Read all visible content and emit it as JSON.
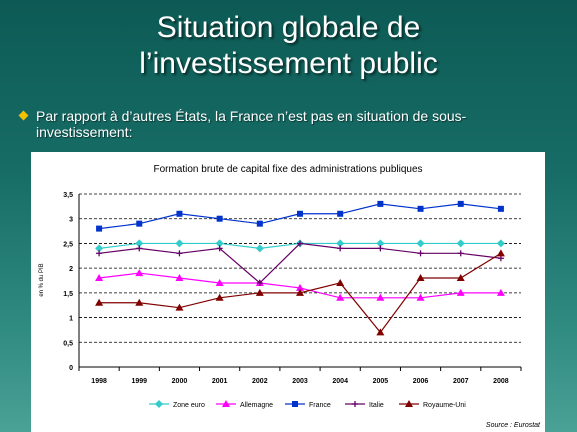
{
  "slide": {
    "title_line1": "Situation globale de",
    "title_line2": "l’investissement public",
    "bullet": "Par rapport à d’autres États, la France n’est pas en situation de sous-investissement:"
  },
  "chart_data": {
    "type": "line",
    "title": "Formation brute de capital fixe des administrations publiques",
    "xlabel": "",
    "ylabel": "en % du PIB",
    "categories": [
      "1998",
      "1999",
      "2000",
      "2001",
      "2002",
      "2003",
      "2004",
      "2005",
      "2006",
      "2007",
      "2008"
    ],
    "ylim": [
      0,
      3.5
    ],
    "yticks": [
      "0",
      "0,5",
      "1",
      "1,5",
      "2",
      "2,5",
      "3",
      "3,5"
    ],
    "grid": true,
    "legend_position": "bottom",
    "source": "Source : Eurostat",
    "series": [
      {
        "name": "Zone euro",
        "color": "#33cccc",
        "marker": "diamond",
        "values": [
          2.4,
          2.5,
          2.5,
          2.5,
          2.4,
          2.5,
          2.5,
          2.5,
          2.5,
          2.5,
          2.5
        ]
      },
      {
        "name": "Allemagne",
        "color": "#ff00ff",
        "marker": "triangle",
        "values": [
          1.8,
          1.9,
          1.8,
          1.7,
          1.7,
          1.6,
          1.4,
          1.4,
          1.4,
          1.5,
          1.5
        ]
      },
      {
        "name": "France",
        "color": "#0033cc",
        "marker": "square",
        "values": [
          2.8,
          2.9,
          3.1,
          3.0,
          2.9,
          3.1,
          3.1,
          3.3,
          3.2,
          3.3,
          3.2
        ]
      },
      {
        "name": "Italie",
        "color": "#660066",
        "marker": "cross",
        "values": [
          2.3,
          2.4,
          2.3,
          2.4,
          1.7,
          2.5,
          2.4,
          2.4,
          2.3,
          2.3,
          2.2
        ]
      },
      {
        "name": "Royaume-Uni",
        "color": "#800000",
        "marker": "triangle",
        "values": [
          1.3,
          1.3,
          1.2,
          1.4,
          1.5,
          1.5,
          1.7,
          0.7,
          1.8,
          1.8,
          2.3
        ]
      }
    ]
  }
}
